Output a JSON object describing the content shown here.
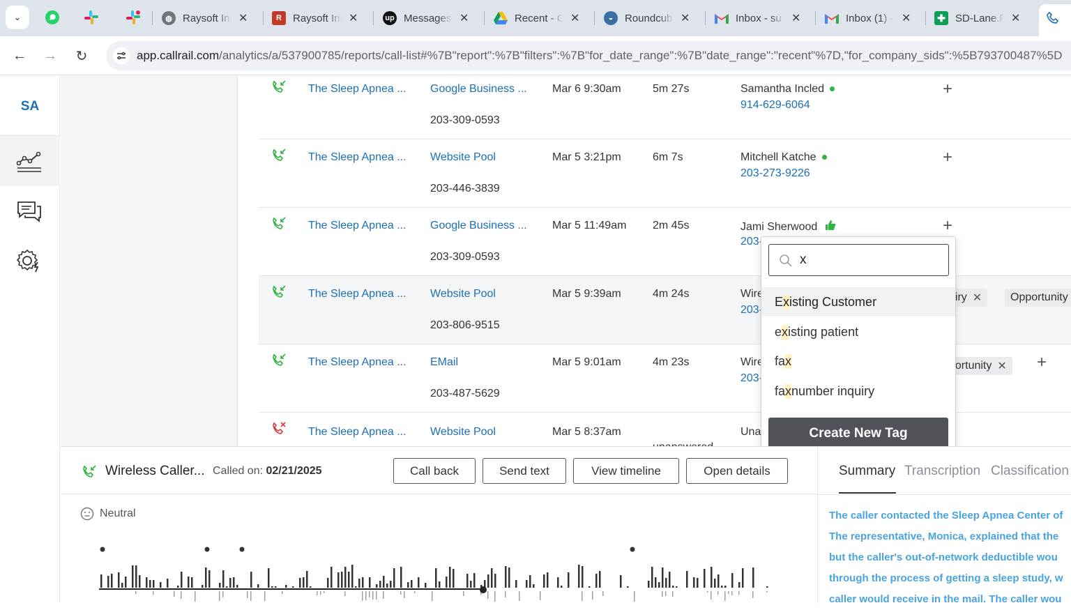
{
  "browser": {
    "tabs": [
      {
        "title": "Raysoft Inf",
        "icon": "globe-icon"
      },
      {
        "title": "Raysoft Inf",
        "icon": "raysoft-icon"
      },
      {
        "title": "Messages",
        "icon": "upwork-icon"
      },
      {
        "title": "Recent - G",
        "icon": "google-drive-icon"
      },
      {
        "title": "Roundcub",
        "icon": "roundcube-icon"
      },
      {
        "title": "Inbox - su",
        "icon": "gmail-icon"
      },
      {
        "title": "Inbox (1) -",
        "icon": "gmail-icon"
      },
      {
        "title": "SD-Lane.R",
        "icon": "sheets-icon"
      }
    ],
    "url_host": "app.callrail.com",
    "url_path": "/analytics/a/537900785/reports/call-list#%7B\"report\":%7B\"filters\":%7B\"for_date_range\":%7B\"date_range\":\"recent\"%7D,\"for_company_sids\":%5B793700487%5D"
  },
  "rail": {
    "account_initials": "SA"
  },
  "calls": [
    {
      "company": "The Sleep Apnea ...",
      "source": "Google Business ...",
      "tracking": "203-309-0593",
      "datetime": "Mar 6 9:30am",
      "duration": "5m 27s",
      "caller": "Samantha Incled",
      "caller_phone": "914-629-6064",
      "status": "answered",
      "indicator": "green-dot"
    },
    {
      "company": "The Sleep Apnea ...",
      "source": "Website Pool",
      "tracking": "203-446-3839",
      "datetime": "Mar 5 3:21pm",
      "duration": "6m 7s",
      "caller": "Mitchell Katche",
      "caller_phone": "203-273-9226",
      "status": "answered",
      "indicator": "green-dot"
    },
    {
      "company": "The Sleep Apnea ...",
      "source": "Google Business ...",
      "tracking": "203-309-0593",
      "datetime": "Mar 5 11:49am",
      "duration": "2m 45s",
      "caller": "Jami Sherwood",
      "caller_phone": "203-667-3590",
      "status": "answered",
      "indicator": "thumbs-up"
    },
    {
      "company": "The Sleep Apnea ...",
      "source": "Website Pool",
      "tracking": "203-806-9515",
      "datetime": "Mar 5 9:39am",
      "duration": "4m 24s",
      "caller": "Wire",
      "caller_phone": "203-",
      "status": "answered",
      "tags": [
        "uiry",
        "Opportunity"
      ]
    },
    {
      "company": "The Sleep Apnea ...",
      "source": "EMail",
      "tracking": "203-487-5629",
      "datetime": "Mar 5 9:01am",
      "duration": "4m 23s",
      "caller": "Wire",
      "caller_phone": "203-",
      "status": "answered",
      "tags": [
        "portunity"
      ]
    },
    {
      "company": "The Sleep Apnea ...",
      "source": "Website Pool",
      "tracking": "",
      "datetime": "Mar 5 8:37am",
      "duration": "unanswered",
      "caller": "Una",
      "caller_phone": "",
      "status": "missed"
    }
  ],
  "tag_dropdown": {
    "query": "x",
    "options": [
      {
        "pre": "E",
        "match": "x",
        "post": "isting Customer"
      },
      {
        "pre": "e",
        "match": "x",
        "post": "isting patient"
      },
      {
        "pre": "fa",
        "match": "x",
        "post": ""
      },
      {
        "pre": "fa",
        "match": "x",
        "post": " number inquiry"
      }
    ],
    "create_label": "Create New Tag"
  },
  "call_detail": {
    "caller_name": "Wireless Caller...",
    "called_on_label": "Called on:",
    "called_on_value": "02/21/2025",
    "buttons": [
      "Call back",
      "Send text",
      "View timeline",
      "Open details"
    ],
    "sentiment": "Neutral",
    "tabs": [
      "Summary",
      "Transcription",
      "Classification"
    ],
    "summary_lines": [
      "The caller contacted the Sleep Apnea Center of",
      "The representative, Monica, explained that the",
      "but the caller's out-of-network deductible wou",
      "through the process of getting a sleep study, w",
      "caller would receive in the mail. The caller wou"
    ]
  },
  "colors": {
    "link": "#1b6fb5",
    "accent_green": "#2fb344",
    "missed_red": "#d9363e",
    "summary_blue": "#4aa3df"
  }
}
